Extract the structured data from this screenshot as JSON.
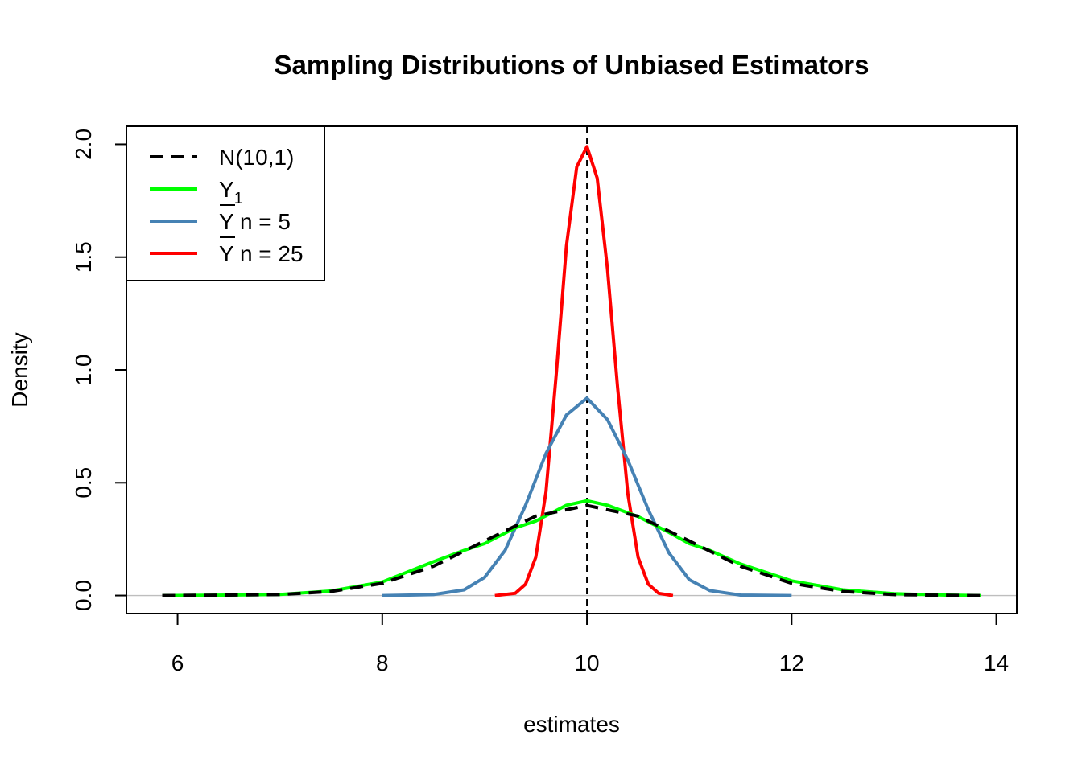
{
  "chart_data": {
    "type": "line",
    "title": "Sampling Distributions of Unbiased Estimators",
    "xlabel": "estimates",
    "ylabel": "Density",
    "xlim": [
      5.5,
      14.2
    ],
    "ylim": [
      -0.08,
      2.08
    ],
    "x_ticks": [
      6,
      8,
      10,
      12,
      14
    ],
    "x_tick_labels": [
      "6",
      "8",
      "10",
      "12",
      "14"
    ],
    "y_ticks": [
      0.0,
      0.5,
      1.0,
      1.5,
      2.0
    ],
    "y_tick_labels": [
      "0.0",
      "0.5",
      "1.0",
      "1.5",
      "2.0"
    ],
    "grid": false,
    "zero_line": {
      "y": 0,
      "color": "#bebebe"
    },
    "vertical_reference": {
      "x": 10,
      "style": "dashed",
      "color": "#000000"
    },
    "legend": {
      "position": "top-left",
      "entries": [
        {
          "main": "N(10,1)",
          "sub": "",
          "overline": false,
          "series": 0
        },
        {
          "main": "Y",
          "sub": "1",
          "overline": false,
          "series": 1
        },
        {
          "main": "Y",
          "sub": "",
          "rest": " n = 5",
          "overline": true,
          "series": 2
        },
        {
          "main": "Y",
          "sub": "",
          "rest": " n = 25",
          "overline": true,
          "series": 3
        }
      ]
    },
    "series": [
      {
        "name": "N(10,1)",
        "color": "#000000",
        "dashed": true,
        "x": [
          5.85,
          6.5,
          7.0,
          7.5,
          8.0,
          8.5,
          9.0,
          9.5,
          10.0,
          10.5,
          11.0,
          11.5,
          12.0,
          12.5,
          13.0,
          13.5,
          13.85
        ],
        "y": [
          0.0,
          0.002,
          0.004,
          0.018,
          0.054,
          0.13,
          0.242,
          0.352,
          0.399,
          0.352,
          0.242,
          0.13,
          0.054,
          0.018,
          0.004,
          0.001,
          0.0
        ]
      },
      {
        "name": "Y1",
        "color": "#00ff00",
        "dashed": false,
        "x": [
          5.85,
          6.5,
          7.0,
          7.5,
          8.0,
          8.5,
          8.8,
          9.0,
          9.3,
          9.5,
          9.8,
          10.0,
          10.2,
          10.5,
          10.8,
          11.0,
          11.2,
          11.5,
          12.0,
          12.5,
          13.0,
          13.5,
          13.85
        ],
        "y": [
          0.0,
          0.002,
          0.005,
          0.02,
          0.06,
          0.15,
          0.2,
          0.23,
          0.3,
          0.33,
          0.4,
          0.42,
          0.4,
          0.35,
          0.28,
          0.23,
          0.2,
          0.14,
          0.065,
          0.025,
          0.008,
          0.002,
          0.0
        ]
      },
      {
        "name": "Y n = 5",
        "color": "#4682b4",
        "dashed": false,
        "x": [
          8.0,
          8.5,
          8.8,
          9.0,
          9.2,
          9.4,
          9.6,
          9.8,
          10.0,
          10.2,
          10.4,
          10.6,
          10.8,
          11.0,
          11.2,
          11.5,
          12.0
        ],
        "y": [
          0.0,
          0.004,
          0.025,
          0.08,
          0.2,
          0.4,
          0.63,
          0.8,
          0.875,
          0.78,
          0.6,
          0.38,
          0.19,
          0.07,
          0.022,
          0.002,
          0.0
        ]
      },
      {
        "name": "Y n = 25",
        "color": "#ff0000",
        "dashed": false,
        "x": [
          9.1,
          9.3,
          9.4,
          9.5,
          9.6,
          9.7,
          9.8,
          9.9,
          10.0,
          10.1,
          10.2,
          10.3,
          10.4,
          10.5,
          10.6,
          10.7,
          10.84
        ],
        "y": [
          0.0,
          0.01,
          0.05,
          0.17,
          0.46,
          0.98,
          1.55,
          1.9,
          1.99,
          1.85,
          1.45,
          0.92,
          0.45,
          0.17,
          0.05,
          0.01,
          0.0
        ]
      }
    ]
  }
}
